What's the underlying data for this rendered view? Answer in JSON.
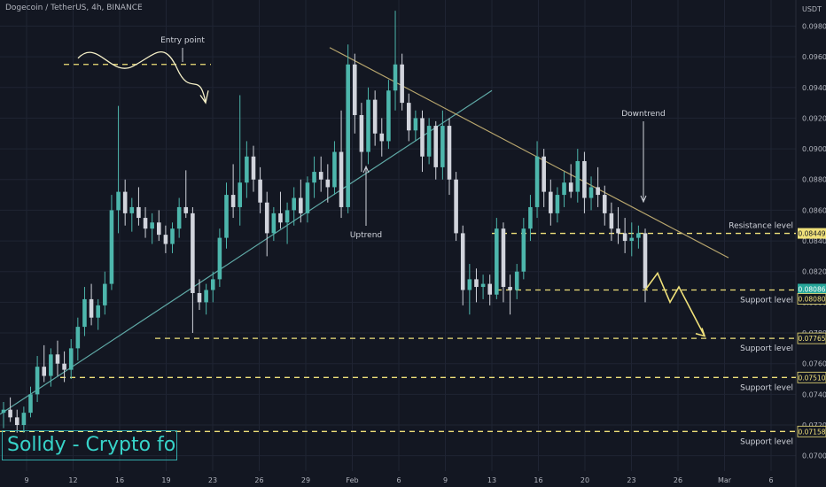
{
  "header": {
    "title": "Dogecoin / TetherUS, 4h, BINANCE"
  },
  "brand": {
    "label": "Solldy - Crypto for U"
  },
  "colors": {
    "background": "#131722",
    "grid": "#1f2433",
    "candle_up": "#4db6ac",
    "candle_down": "#d1d4dc",
    "annotation": "#f0e17a",
    "trendline": "#b7a56d",
    "uptrend_line": "#5fa9a6",
    "price_tag_bg": "#f0e17a",
    "current_price_bg": "#26a69a"
  },
  "chart_data": {
    "type": "candlestick",
    "symbol": "Dogecoin / TetherUS",
    "timeframe": "4h",
    "exchange": "BINANCE",
    "y_axis_unit": "USDT",
    "ylim": [
      0.069,
      0.0997
    ],
    "y_ticks": [
      "0.09800",
      "0.09600",
      "0.09400",
      "0.09200",
      "0.09000",
      "0.08800",
      "0.08600",
      "0.08400",
      "0.08200",
      "0.08000",
      "0.07800",
      "0.07600",
      "0.07400",
      "0.07200",
      "0.07000"
    ],
    "x_ticks": [
      "9",
      "12",
      "16",
      "19",
      "23",
      "26",
      "29",
      "Feb",
      "6",
      "9",
      "13",
      "16",
      "20",
      "23",
      "26",
      "Mar",
      "6"
    ],
    "price_tags": [
      {
        "value": "0.08449",
        "kind": "resistance"
      },
      {
        "value": "0.08086",
        "kind": "current"
      },
      {
        "value": "0.08080",
        "kind": "support"
      },
      {
        "value": "0.07765",
        "kind": "support"
      },
      {
        "value": "0.07510",
        "kind": "support"
      },
      {
        "value": "0.07158",
        "kind": "support"
      }
    ],
    "levels": [
      {
        "value": 0.0955,
        "style": "dashed",
        "label": ""
      },
      {
        "value": 0.08449,
        "style": "dashed",
        "label": "Resistance level"
      },
      {
        "value": 0.0808,
        "style": "dashed",
        "label": "Support level"
      },
      {
        "value": 0.07765,
        "style": "dashed",
        "label": "Support level"
      },
      {
        "value": 0.0751,
        "style": "dashed",
        "label": "Support level"
      },
      {
        "value": 0.07158,
        "style": "dashed",
        "label": "Support level"
      }
    ],
    "annotations": [
      "Entry point",
      "Uptrend",
      "Downtrend"
    ],
    "key_points": [
      0.073,
      0.076,
      0.0868,
      0.079,
      0.089,
      0.083,
      0.0955,
      0.0855,
      0.0935,
      0.088,
      0.086,
      0.08,
      0.0812,
      0.0878,
      0.085,
      0.088,
      0.0838,
      0.0808,
      0.078
    ],
    "candles": [
      [
        0.0728,
        0.0735,
        0.0718,
        0.073
      ],
      [
        0.073,
        0.0738,
        0.0722,
        0.0725
      ],
      [
        0.0725,
        0.073,
        0.0715,
        0.072
      ],
      [
        0.072,
        0.0732,
        0.0715,
        0.0728
      ],
      [
        0.0728,
        0.0745,
        0.0725,
        0.074
      ],
      [
        0.074,
        0.0765,
        0.0735,
        0.0758
      ],
      [
        0.0758,
        0.0772,
        0.0748,
        0.0752
      ],
      [
        0.0752,
        0.077,
        0.0745,
        0.0766
      ],
      [
        0.0766,
        0.0775,
        0.0752,
        0.076
      ],
      [
        0.076,
        0.0768,
        0.0748,
        0.0756
      ],
      [
        0.0756,
        0.0776,
        0.075,
        0.077
      ],
      [
        0.077,
        0.079,
        0.0762,
        0.0784
      ],
      [
        0.0784,
        0.081,
        0.0778,
        0.0802
      ],
      [
        0.0802,
        0.0812,
        0.0785,
        0.079
      ],
      [
        0.079,
        0.0802,
        0.0782,
        0.0798
      ],
      [
        0.0798,
        0.082,
        0.0792,
        0.0812
      ],
      [
        0.0812,
        0.087,
        0.0808,
        0.086
      ],
      [
        0.086,
        0.0928,
        0.0845,
        0.0872
      ],
      [
        0.0872,
        0.088,
        0.085,
        0.0858
      ],
      [
        0.0858,
        0.0868,
        0.0846,
        0.0862
      ],
      [
        0.0862,
        0.0875,
        0.085,
        0.0855
      ],
      [
        0.0855,
        0.0862,
        0.0842,
        0.0848
      ],
      [
        0.0848,
        0.0858,
        0.0838,
        0.0852
      ],
      [
        0.0852,
        0.086,
        0.084,
        0.0844
      ],
      [
        0.0844,
        0.085,
        0.0832,
        0.0838
      ],
      [
        0.0838,
        0.0852,
        0.0832,
        0.0848
      ],
      [
        0.0848,
        0.0868,
        0.0842,
        0.0862
      ],
      [
        0.0862,
        0.0886,
        0.0855,
        0.0858
      ],
      [
        0.0858,
        0.0862,
        0.078,
        0.0806
      ],
      [
        0.0806,
        0.0815,
        0.0795,
        0.08
      ],
      [
        0.08,
        0.0812,
        0.0792,
        0.0808
      ],
      [
        0.0808,
        0.082,
        0.08,
        0.0815
      ],
      [
        0.0815,
        0.0848,
        0.081,
        0.0842
      ],
      [
        0.0842,
        0.0878,
        0.0835,
        0.087
      ],
      [
        0.087,
        0.089,
        0.0855,
        0.0862
      ],
      [
        0.0862,
        0.0935,
        0.085,
        0.0878
      ],
      [
        0.0878,
        0.0905,
        0.0868,
        0.0895
      ],
      [
        0.0895,
        0.0902,
        0.0872,
        0.088
      ],
      [
        0.088,
        0.0888,
        0.0858,
        0.0865
      ],
      [
        0.0865,
        0.0872,
        0.083,
        0.0845
      ],
      [
        0.0845,
        0.0862,
        0.084,
        0.0858
      ],
      [
        0.0858,
        0.0872,
        0.0848,
        0.0852
      ],
      [
        0.0852,
        0.0865,
        0.0838,
        0.086
      ],
      [
        0.086,
        0.0875,
        0.085,
        0.0868
      ],
      [
        0.0868,
        0.088,
        0.0852,
        0.0858
      ],
      [
        0.0858,
        0.0882,
        0.0852,
        0.0878
      ],
      [
        0.0878,
        0.0895,
        0.0868,
        0.0885
      ],
      [
        0.0885,
        0.0895,
        0.0872,
        0.088
      ],
      [
        0.088,
        0.089,
        0.0865,
        0.0875
      ],
      [
        0.0875,
        0.0905,
        0.087,
        0.0898
      ],
      [
        0.0898,
        0.0925,
        0.0855,
        0.0862
      ],
      [
        0.0862,
        0.0968,
        0.0858,
        0.0955
      ],
      [
        0.0955,
        0.0962,
        0.091,
        0.0922
      ],
      [
        0.0922,
        0.093,
        0.0885,
        0.0898
      ],
      [
        0.0898,
        0.094,
        0.089,
        0.0932
      ],
      [
        0.0932,
        0.0938,
        0.0902,
        0.091
      ],
      [
        0.091,
        0.092,
        0.0895,
        0.0905
      ],
      [
        0.0905,
        0.0945,
        0.09,
        0.0938
      ],
      [
        0.0938,
        0.099,
        0.0925,
        0.0955
      ],
      [
        0.0955,
        0.0962,
        0.0925,
        0.093
      ],
      [
        0.093,
        0.0936,
        0.0905,
        0.0912
      ],
      [
        0.0912,
        0.0925,
        0.0905,
        0.092
      ],
      [
        0.092,
        0.0925,
        0.0885,
        0.0895
      ],
      [
        0.0895,
        0.092,
        0.089,
        0.0915
      ],
      [
        0.0915,
        0.0918,
        0.088,
        0.0888
      ],
      [
        0.0888,
        0.0925,
        0.088,
        0.0915
      ],
      [
        0.0915,
        0.092,
        0.087,
        0.088
      ],
      [
        0.088,
        0.0885,
        0.084,
        0.0845
      ],
      [
        0.0845,
        0.085,
        0.0798,
        0.0808
      ],
      [
        0.0808,
        0.0825,
        0.0792,
        0.0815
      ],
      [
        0.0815,
        0.0822,
        0.08,
        0.081
      ],
      [
        0.081,
        0.0818,
        0.0802,
        0.0812
      ],
      [
        0.0812,
        0.0818,
        0.0798,
        0.0805
      ],
      [
        0.0805,
        0.0855,
        0.0802,
        0.0848
      ],
      [
        0.0848,
        0.0852,
        0.08,
        0.081
      ],
      [
        0.081,
        0.0818,
        0.0792,
        0.0808
      ],
      [
        0.0808,
        0.0825,
        0.0802,
        0.082
      ],
      [
        0.082,
        0.0855,
        0.0815,
        0.0848
      ],
      [
        0.0848,
        0.087,
        0.084,
        0.0862
      ],
      [
        0.0862,
        0.0905,
        0.0855,
        0.0895
      ],
      [
        0.0895,
        0.09,
        0.0862,
        0.0872
      ],
      [
        0.0872,
        0.088,
        0.085,
        0.0858
      ],
      [
        0.0858,
        0.0875,
        0.0852,
        0.087
      ],
      [
        0.087,
        0.0885,
        0.0862,
        0.0878
      ],
      [
        0.0878,
        0.089,
        0.0868,
        0.0872
      ],
      [
        0.0872,
        0.09,
        0.0865,
        0.0892
      ],
      [
        0.0892,
        0.0898,
        0.0858,
        0.0868
      ],
      [
        0.0868,
        0.0882,
        0.086,
        0.0875
      ],
      [
        0.0875,
        0.0888,
        0.0862,
        0.087
      ],
      [
        0.087,
        0.0876,
        0.085,
        0.0858
      ],
      [
        0.0858,
        0.0865,
        0.084,
        0.0848
      ],
      [
        0.0848,
        0.0862,
        0.0838,
        0.0845
      ],
      [
        0.0845,
        0.0855,
        0.0832,
        0.084
      ],
      [
        0.084,
        0.0852,
        0.083,
        0.0842
      ],
      [
        0.0842,
        0.085,
        0.0835,
        0.0845
      ],
      [
        0.0845,
        0.0848,
        0.08,
        0.0809
      ]
    ]
  }
}
